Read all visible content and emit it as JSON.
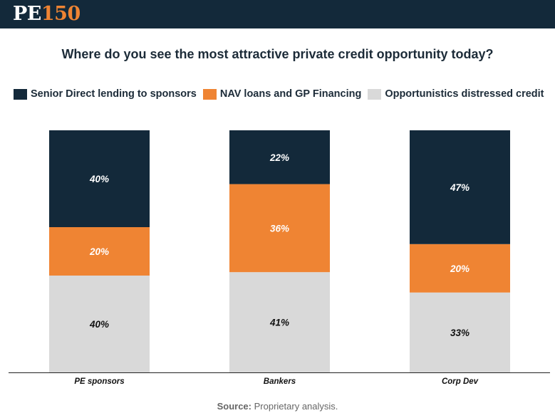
{
  "brand": {
    "logo_letters": "PE",
    "logo_number": "150"
  },
  "colors": {
    "header_bg": "#13293a",
    "logo_accent": "#ef8433",
    "senior": "#13293a",
    "nav": "#ef8433",
    "opportunistic": "#d9d9d9",
    "label_light": "#ffffff",
    "label_dark": "#111111"
  },
  "source": {
    "label": "Source:",
    "text": "Proprietary analysis."
  },
  "chart_data": {
    "type": "bar",
    "stacked": true,
    "title": "Where do you see the most attractive private credit opportunity today?",
    "categories": [
      "PE sponsors",
      "Bankers",
      "Corp Dev"
    ],
    "series": [
      {
        "name": "Opportunistics distressed credit",
        "color": "#d9d9d9",
        "label_color": "#111111",
        "values": [
          40,
          41,
          33
        ]
      },
      {
        "name": "NAV loans and GP Financing",
        "color": "#ef8433",
        "label_color": "#ffffff",
        "values": [
          20,
          36,
          20
        ]
      },
      {
        "name": "Senior Direct lending to sponsors",
        "color": "#13293a",
        "label_color": "#ffffff",
        "values": [
          40,
          22,
          47
        ]
      }
    ],
    "legend_order": [
      {
        "name": "Senior Direct lending to sponsors",
        "color": "#13293a"
      },
      {
        "name": "NAV loans and GP Financing",
        "color": "#ef8433"
      },
      {
        "name": "Opportunistics distressed credit",
        "color": "#d9d9d9"
      }
    ],
    "value_suffix": "%",
    "xlabel": "",
    "ylabel": "",
    "ylim": [
      0,
      100
    ],
    "grid": false,
    "legend_position": "top-left"
  }
}
